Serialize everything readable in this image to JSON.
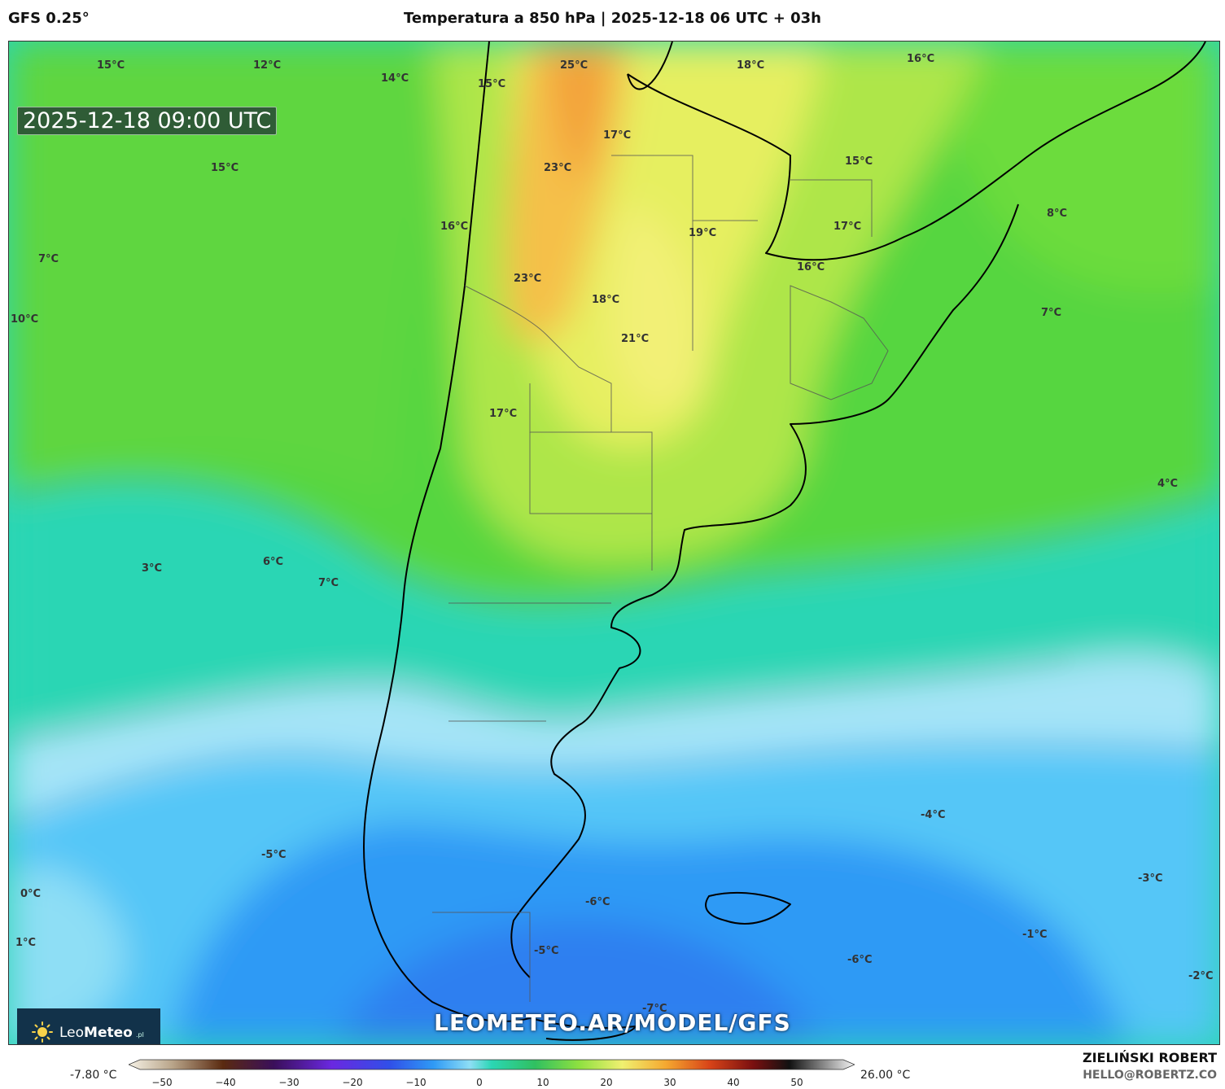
{
  "header": {
    "model": "GFS 0.25°",
    "title": "Temperatura a 850 hPa | 2025-12-18 06 UTC + 03h"
  },
  "map": {
    "valid_time": "2025-12-18 09:00 UTC",
    "url_overlay": "LEOMETEO.AR/MODEL/GFS",
    "logo_text_light": "Leo",
    "logo_text_bold": "Meteo",
    "logo_suffix": ".pl",
    "labels": [
      {
        "id": "l1",
        "text": "15°C"
      },
      {
        "id": "l2",
        "text": "12°C"
      },
      {
        "id": "l3",
        "text": "14°C"
      },
      {
        "id": "l4",
        "text": "15°C"
      },
      {
        "id": "l5",
        "text": "25°C"
      },
      {
        "id": "l6",
        "text": "18°C"
      },
      {
        "id": "l7",
        "text": "16°C"
      },
      {
        "id": "l8",
        "text": "17°C"
      },
      {
        "id": "l9",
        "text": "15°C"
      },
      {
        "id": "l10",
        "text": "23°C"
      },
      {
        "id": "l11",
        "text": "15°C"
      },
      {
        "id": "l12",
        "text": "16°C"
      },
      {
        "id": "l13",
        "text": "19°C"
      },
      {
        "id": "l14",
        "text": "17°C"
      },
      {
        "id": "l15",
        "text": "8°C"
      },
      {
        "id": "l16",
        "text": "7°C"
      },
      {
        "id": "l17",
        "text": "16°C"
      },
      {
        "id": "l18",
        "text": "23°C"
      },
      {
        "id": "l19",
        "text": "18°C"
      },
      {
        "id": "l20",
        "text": "10°C"
      },
      {
        "id": "l21",
        "text": "7°C"
      },
      {
        "id": "l22",
        "text": "21°C"
      },
      {
        "id": "l23",
        "text": "17°C"
      },
      {
        "id": "l24",
        "text": "4°C"
      },
      {
        "id": "l25",
        "text": "3°C"
      },
      {
        "id": "l26",
        "text": "6°C"
      },
      {
        "id": "l27",
        "text": "7°C"
      },
      {
        "id": "l28",
        "text": "-4°C"
      },
      {
        "id": "l29",
        "text": "-5°C"
      },
      {
        "id": "l30",
        "text": "0°C"
      },
      {
        "id": "l31",
        "text": "-3°C"
      },
      {
        "id": "l32",
        "text": "-6°C"
      },
      {
        "id": "l33",
        "text": "-1°C"
      },
      {
        "id": "l34",
        "text": "1°C"
      },
      {
        "id": "l35",
        "text": "-5°C"
      },
      {
        "id": "l36",
        "text": "-6°C"
      },
      {
        "id": "l37",
        "text": "-2°C"
      },
      {
        "id": "l38",
        "text": "-7°C"
      }
    ]
  },
  "colorbar": {
    "min_label": "-7.80 °C",
    "max_label": "26.00 °C",
    "ticks": [
      "−50",
      "−40",
      "−30",
      "−20",
      "−10",
      "0",
      "10",
      "20",
      "30",
      "40",
      "50"
    ]
  },
  "footer": {
    "author": "ZIELIŃSKI ROBERT",
    "email": "HELLO@ROBERTZ.CO"
  },
  "colors": {
    "ocean_cold": "#2f7ff0",
    "light_blue": "#a6e4f7",
    "cyan": "#2bd6b4",
    "green": "#56d640",
    "yellow_green": "#c4ec48",
    "yellow": "#f0f07a",
    "orange": "#f5b53a"
  }
}
